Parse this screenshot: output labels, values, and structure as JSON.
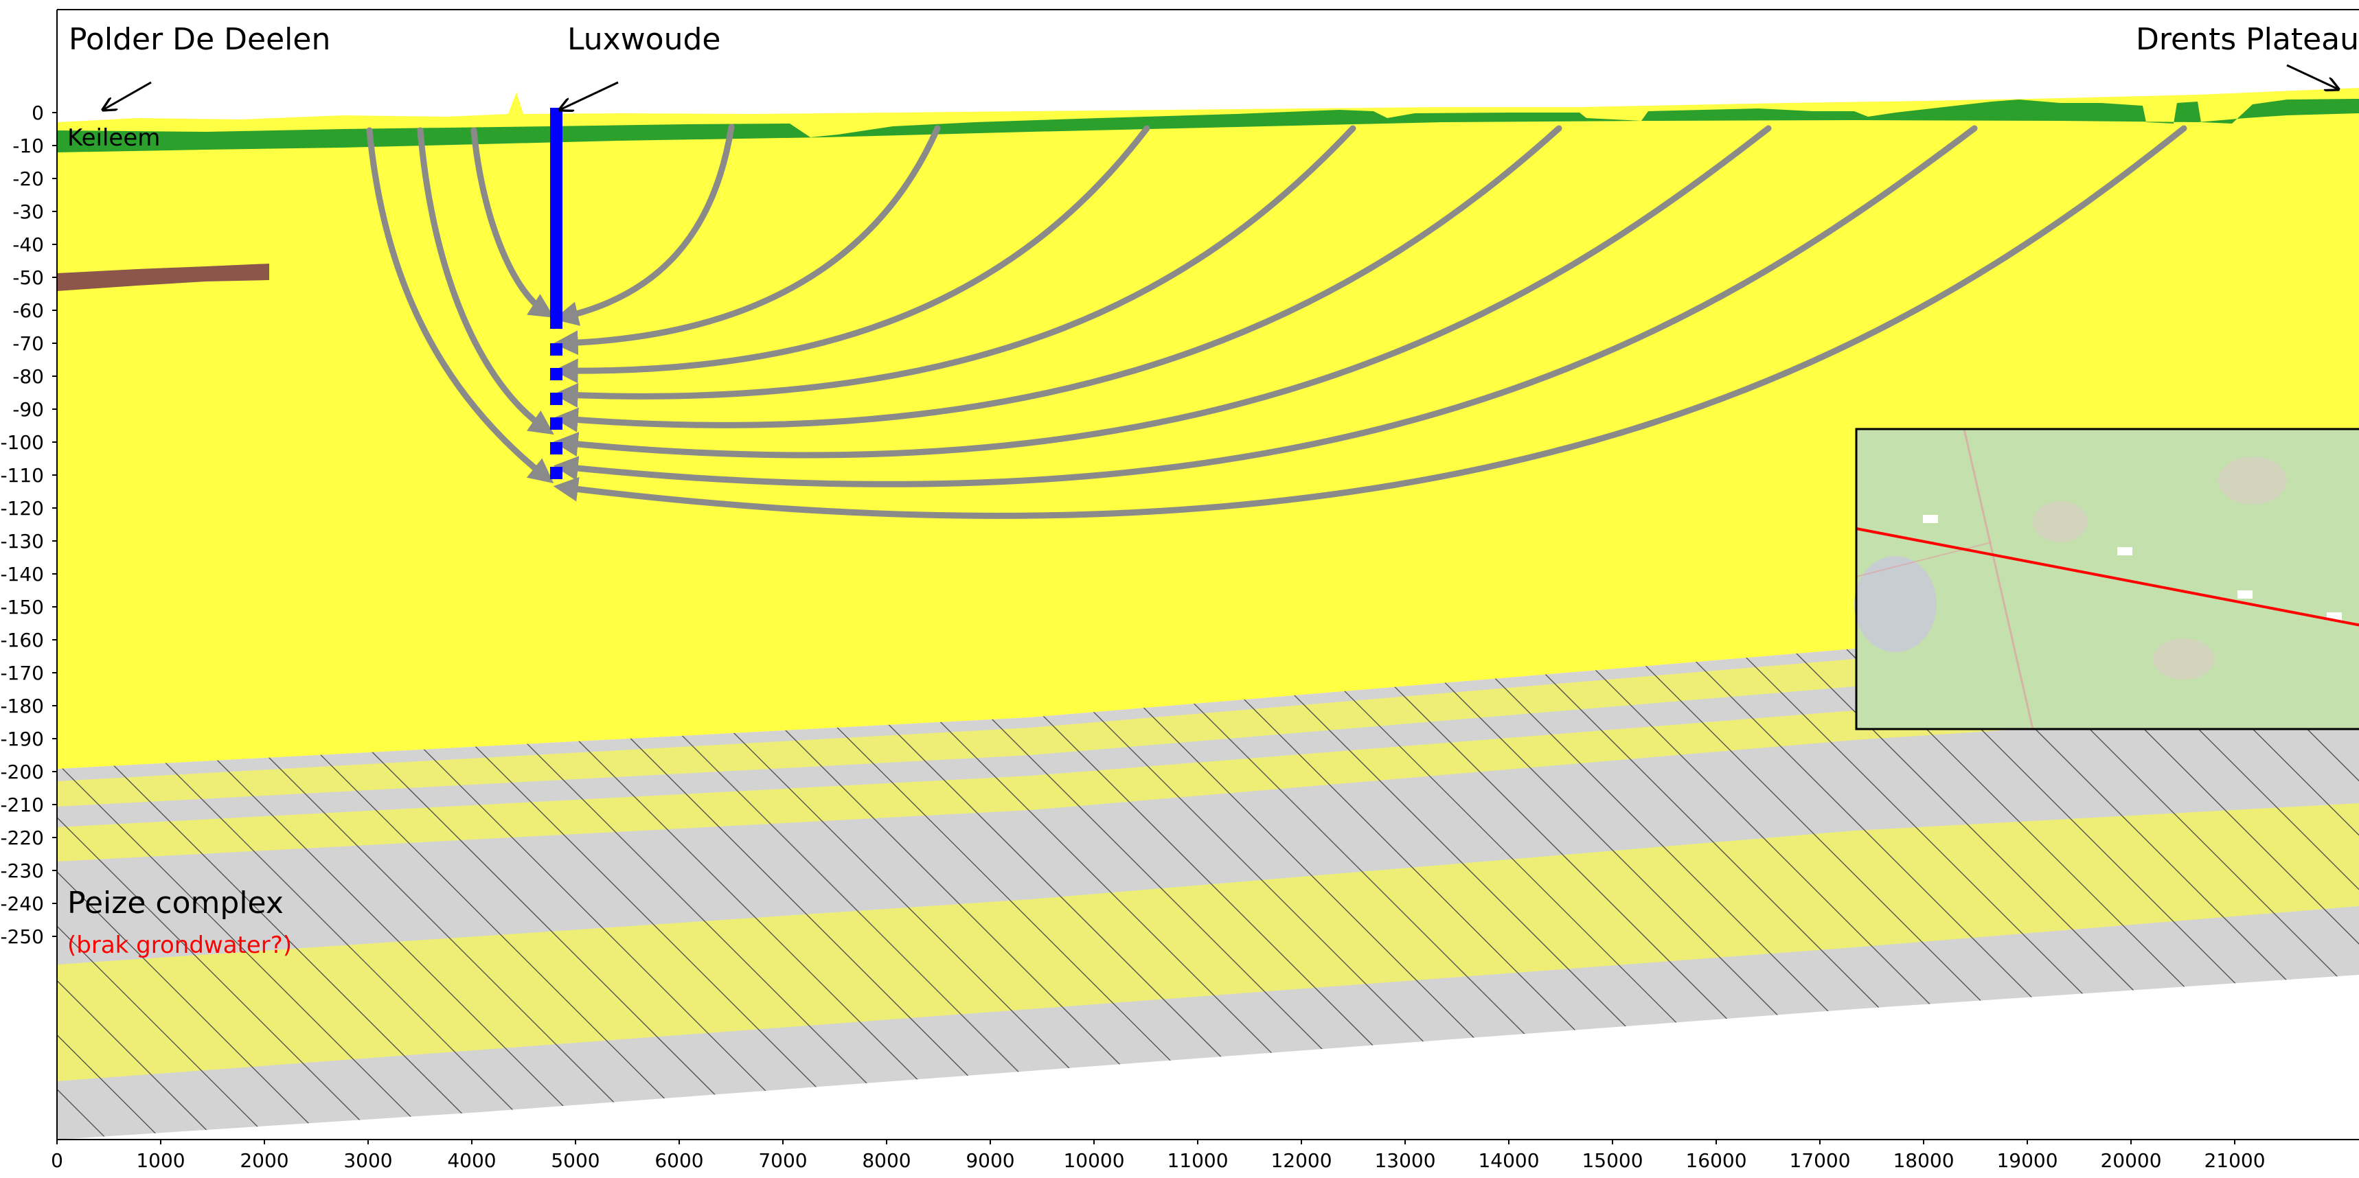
{
  "figure": {
    "labels": {
      "polder": "Polder De Deelen",
      "luxwoude": "Luxwoude",
      "drents": "Drents Plateau",
      "keileem": "Keileem",
      "peize": "Peize complex",
      "peize_sub": "(brak grondwater?)"
    },
    "axes": {
      "x_ticks": [
        "0",
        "1000",
        "2000",
        "3000",
        "4000",
        "5000",
        "6000",
        "7000",
        "8000",
        "9000",
        "10000",
        "11000",
        "12000",
        "13000",
        "14000",
        "15000",
        "16000",
        "17000",
        "18000",
        "19000",
        "20000",
        "21000"
      ],
      "y_ticks": [
        "0",
        "-10",
        "-20",
        "-30",
        "-40",
        "-50",
        "-60",
        "-70",
        "-80",
        "-90",
        "-100",
        "-110",
        "-120",
        "-130",
        "-140",
        "-150",
        "-160",
        "-170",
        "-180",
        "-190",
        "-200",
        "-210",
        "-220",
        "-230",
        "-240",
        "-250"
      ]
    },
    "colors": {
      "sand": "#ffff44",
      "keileem": "#2ca02c",
      "clay_lens": "#8c564b",
      "well": "#0000ff",
      "flowline": "#8a8a8a",
      "peize_grey": "#d3d3d3",
      "peize_yellow": "#eeee77",
      "section_line": "#ff0000"
    },
    "inset": {
      "description_icon": "map-inset"
    }
  }
}
